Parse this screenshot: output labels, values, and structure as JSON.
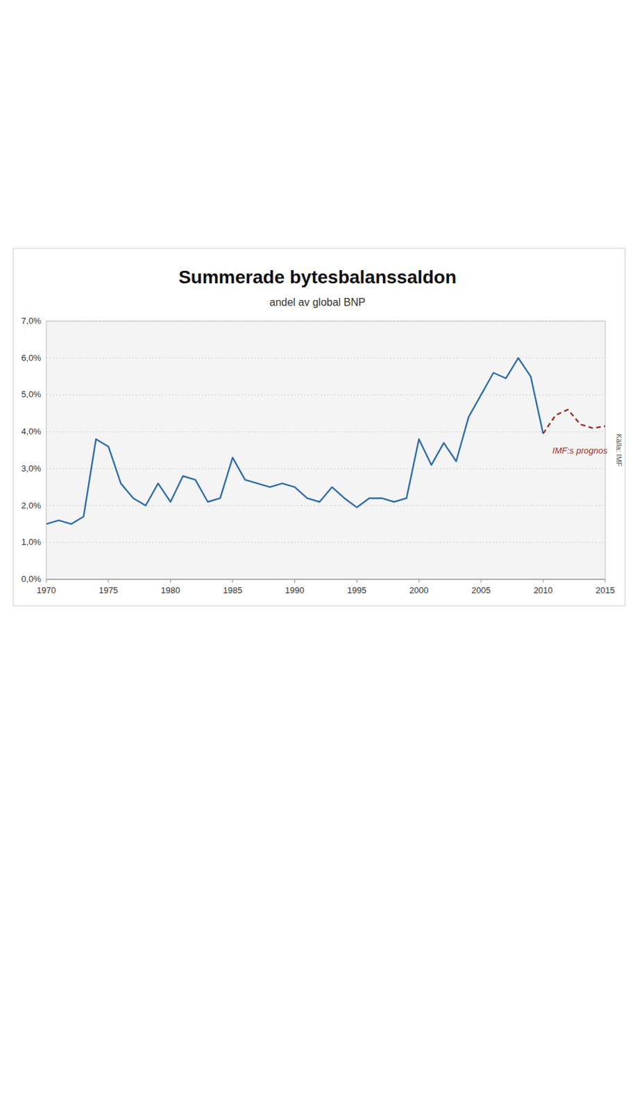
{
  "chart_data": {
    "type": "line",
    "title": "Summerade bytesbalanssaldon",
    "subtitle": "andel av global BNP",
    "source": "Källa: IMF",
    "annotations": [
      {
        "text": "IMF:s prognos",
        "color": "#9b2d1f"
      }
    ],
    "xlim": [
      1970,
      2015
    ],
    "ylim": [
      0.0,
      7.0
    ],
    "xticks": [
      1970,
      1975,
      1980,
      1985,
      1990,
      1995,
      2000,
      2005,
      2010,
      2015
    ],
    "yticks": [
      {
        "value": 0.0,
        "label": "0,0%"
      },
      {
        "value": 1.0,
        "label": "1,0%"
      },
      {
        "value": 2.0,
        "label": "2,0%"
      },
      {
        "value": 3.0,
        "label": "3,0%"
      },
      {
        "value": 4.0,
        "label": "4,0%"
      },
      {
        "value": 5.0,
        "label": "5,0%"
      },
      {
        "value": 6.0,
        "label": "6,0%"
      },
      {
        "value": 7.0,
        "label": "7,0%"
      }
    ],
    "grid": true,
    "series": [
      {
        "color": "#2e6dab",
        "line_style": "solid",
        "x": [
          1970,
          1971,
          1972,
          1973,
          1974,
          1975,
          1976,
          1977,
          1978,
          1979,
          1980,
          1981,
          1982,
          1983,
          1984,
          1985,
          1986,
          1987,
          1988,
          1989,
          1990,
          1991,
          1992,
          1993,
          1994,
          1995,
          1996,
          1997,
          1998,
          1999,
          2000,
          2001,
          2002,
          2003,
          2004,
          2005,
          2006,
          2007,
          2008,
          2009,
          2010
        ],
        "values": [
          1.5,
          1.6,
          1.5,
          1.7,
          3.8,
          3.6,
          2.6,
          2.2,
          2.0,
          2.6,
          2.1,
          2.8,
          2.7,
          2.1,
          2.2,
          3.3,
          2.7,
          2.6,
          2.5,
          2.6,
          2.5,
          2.2,
          2.1,
          2.5,
          2.2,
          1.95,
          2.2,
          2.2,
          2.1,
          2.2,
          3.8,
          3.1,
          3.7,
          3.2,
          4.4,
          5.0,
          5.6,
          5.45,
          6.0,
          5.5,
          3.95
        ]
      },
      {
        "color": "#9b2d1f",
        "line_style": "dashed",
        "x": [
          2010,
          2011,
          2012,
          2013,
          2014,
          2015
        ],
        "values": [
          3.95,
          4.45,
          4.6,
          4.2,
          4.1,
          4.15
        ]
      }
    ]
  }
}
